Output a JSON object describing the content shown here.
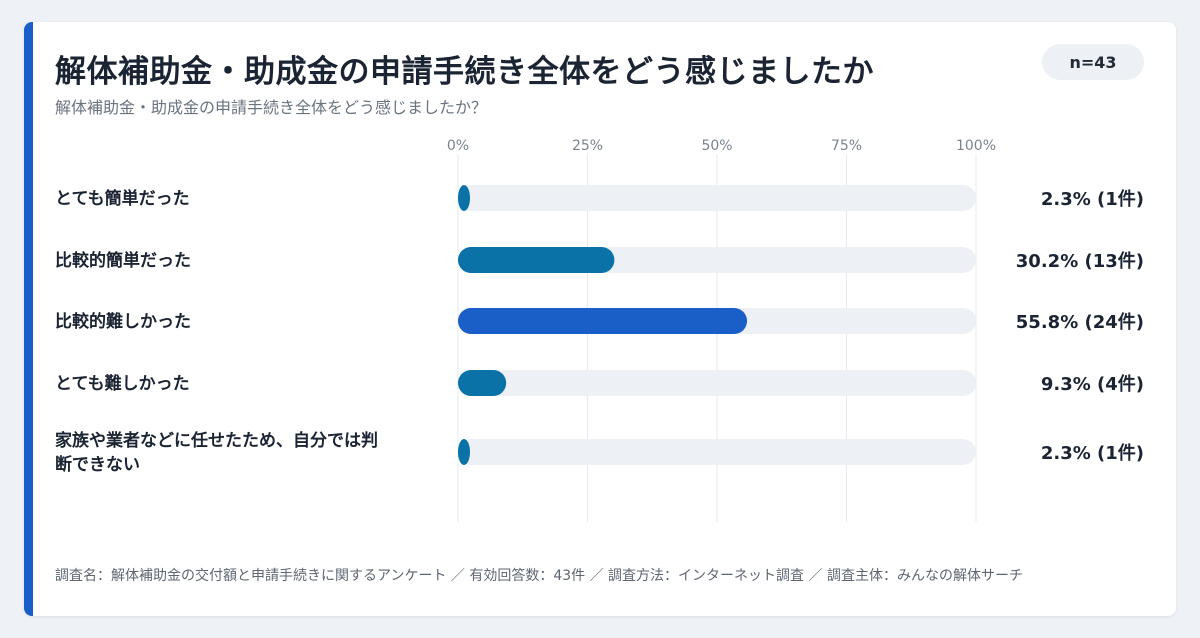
{
  "header": {
    "title": "解体補助金・助成金の申請手続き全体をどう感じましたか",
    "subtitle": "解体補助金・助成金の申請手続き全体をどう感じましたか？",
    "sample_badge": "n=43"
  },
  "chart_data": {
    "type": "bar",
    "orientation": "horizontal",
    "title": "解体補助金・助成金の申請手続き全体をどう感じましたか",
    "subtitle": "解体補助金・助成金の申請手続き全体をどう感じましたか？",
    "xlim": [
      0,
      100
    ],
    "x_ticks": [
      "0%",
      "25%",
      "50%",
      "75%",
      "100%"
    ],
    "grid": true,
    "categories": [
      [
        "とても簡単だった"
      ],
      [
        "比較的簡単だった"
      ],
      [
        "比較的難しかった"
      ],
      [
        "とても難しかった"
      ],
      [
        "家族や業者などに任せたため、自分では判",
        "断できない"
      ]
    ],
    "values": [
      2.3,
      30.2,
      55.8,
      9.3,
      2.3
    ],
    "counts": [
      1,
      13,
      24,
      4,
      1
    ],
    "value_labels": [
      "2.3% (1件)",
      "30.2% (13件)",
      "55.8% (24件)",
      "9.3% (4件)",
      "2.3% (1件)"
    ],
    "bar_colors": [
      "#0a72a6",
      "#0a72a6",
      "#1a5ec7",
      "#0a72a6",
      "#0a72a6"
    ],
    "track_color": "#edf0f4"
  },
  "footer": {
    "note": "調査名：解体補助金の交付額と申請手続きに関するアンケート ／ 有効回答数：43件 ／ 調査方法：インターネット調査 ／ 調査主体：みんなの解体サーチ"
  }
}
